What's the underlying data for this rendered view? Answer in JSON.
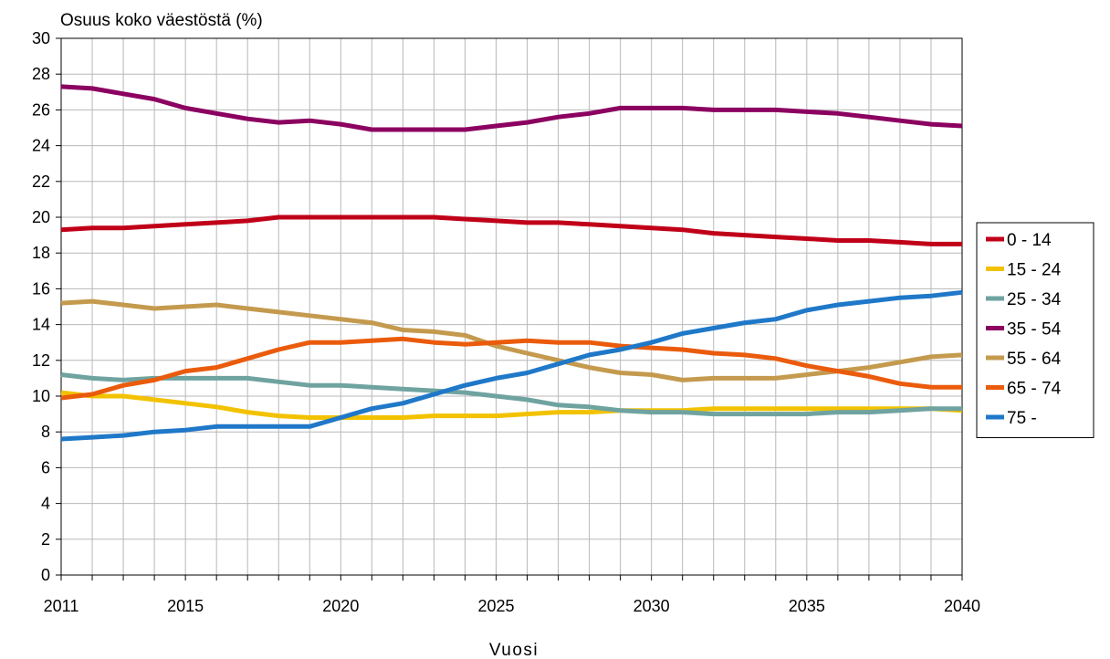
{
  "chart_data": {
    "type": "line",
    "ylabel": "Osuus koko väestöstä (%)",
    "xlabel": "Vuosi",
    "xlim": [
      2011,
      2040
    ],
    "ylim": [
      0,
      30
    ],
    "x_tick_labels": [
      "2011",
      "2015",
      "2020",
      "2025",
      "2030",
      "2035",
      "2040"
    ],
    "y_tick_labels": [
      "0",
      "2",
      "4",
      "6",
      "8",
      "10",
      "12",
      "14",
      "16",
      "18",
      "20",
      "22",
      "24",
      "26",
      "28",
      "30"
    ],
    "grid": true,
    "legend_position": "right",
    "x": [
      2011,
      2012,
      2013,
      2014,
      2015,
      2016,
      2017,
      2018,
      2019,
      2020,
      2021,
      2022,
      2023,
      2024,
      2025,
      2026,
      2027,
      2028,
      2029,
      2030,
      2031,
      2032,
      2033,
      2034,
      2035,
      2036,
      2037,
      2038,
      2039,
      2040
    ],
    "series": [
      {
        "name": "0 - 14",
        "color": "#C00018",
        "values": [
          19.3,
          19.4,
          19.4,
          19.5,
          19.6,
          19.7,
          19.8,
          20.0,
          20.0,
          20.0,
          20.0,
          20.0,
          20.0,
          19.9,
          19.8,
          19.7,
          19.7,
          19.6,
          19.5,
          19.4,
          19.3,
          19.1,
          19.0,
          18.9,
          18.8,
          18.7,
          18.7,
          18.6,
          18.5,
          18.5
        ]
      },
      {
        "name": "15 - 24",
        "color": "#F2C200",
        "values": [
          10.2,
          10.0,
          10.0,
          9.8,
          9.6,
          9.4,
          9.1,
          8.9,
          8.8,
          8.8,
          8.8,
          8.8,
          8.9,
          8.9,
          8.9,
          9.0,
          9.1,
          9.1,
          9.2,
          9.2,
          9.2,
          9.3,
          9.3,
          9.3,
          9.3,
          9.3,
          9.3,
          9.3,
          9.3,
          9.2
        ]
      },
      {
        "name": "25 - 34",
        "color": "#6FA3A0",
        "values": [
          11.2,
          11.0,
          10.9,
          11.0,
          11.0,
          11.0,
          11.0,
          10.8,
          10.6,
          10.6,
          10.5,
          10.4,
          10.3,
          10.2,
          10.0,
          9.8,
          9.5,
          9.4,
          9.2,
          9.1,
          9.1,
          9.0,
          9.0,
          9.0,
          9.0,
          9.1,
          9.1,
          9.2,
          9.3,
          9.3
        ]
      },
      {
        "name": "35 - 54",
        "color": "#8B0060",
        "values": [
          27.3,
          27.2,
          26.9,
          26.6,
          26.1,
          25.8,
          25.5,
          25.3,
          25.4,
          25.2,
          24.9,
          24.9,
          24.9,
          24.9,
          25.1,
          25.3,
          25.6,
          25.8,
          26.1,
          26.1,
          26.1,
          26.0,
          26.0,
          26.0,
          25.9,
          25.8,
          25.6,
          25.4,
          25.2,
          25.1
        ]
      },
      {
        "name": "55 - 64",
        "color": "#C49A4E",
        "values": [
          15.2,
          15.3,
          15.1,
          14.9,
          15.0,
          15.1,
          14.9,
          14.7,
          14.5,
          14.3,
          14.1,
          13.7,
          13.6,
          13.4,
          12.8,
          12.4,
          12.0,
          11.6,
          11.3,
          11.2,
          10.9,
          11.0,
          11.0,
          11.0,
          11.2,
          11.4,
          11.6,
          11.9,
          12.2,
          12.3
        ]
      },
      {
        "name": "65 - 74",
        "color": "#EA5B0C",
        "values": [
          9.9,
          10.1,
          10.6,
          10.9,
          11.4,
          11.6,
          12.1,
          12.6,
          13.0,
          13.0,
          13.1,
          13.2,
          13.0,
          12.9,
          13.0,
          13.1,
          13.0,
          13.0,
          12.8,
          12.7,
          12.6,
          12.4,
          12.3,
          12.1,
          11.7,
          11.4,
          11.1,
          10.7,
          10.5,
          10.5
        ]
      },
      {
        "name": "75 -",
        "color": "#1F78C8",
        "values": [
          7.6,
          7.7,
          7.8,
          8.0,
          8.1,
          8.3,
          8.3,
          8.3,
          8.3,
          8.8,
          9.3,
          9.6,
          10.1,
          10.6,
          11.0,
          11.3,
          11.8,
          12.3,
          12.6,
          13.0,
          13.5,
          13.8,
          14.1,
          14.3,
          14.8,
          15.1,
          15.3,
          15.5,
          15.6,
          15.8
        ]
      }
    ]
  }
}
